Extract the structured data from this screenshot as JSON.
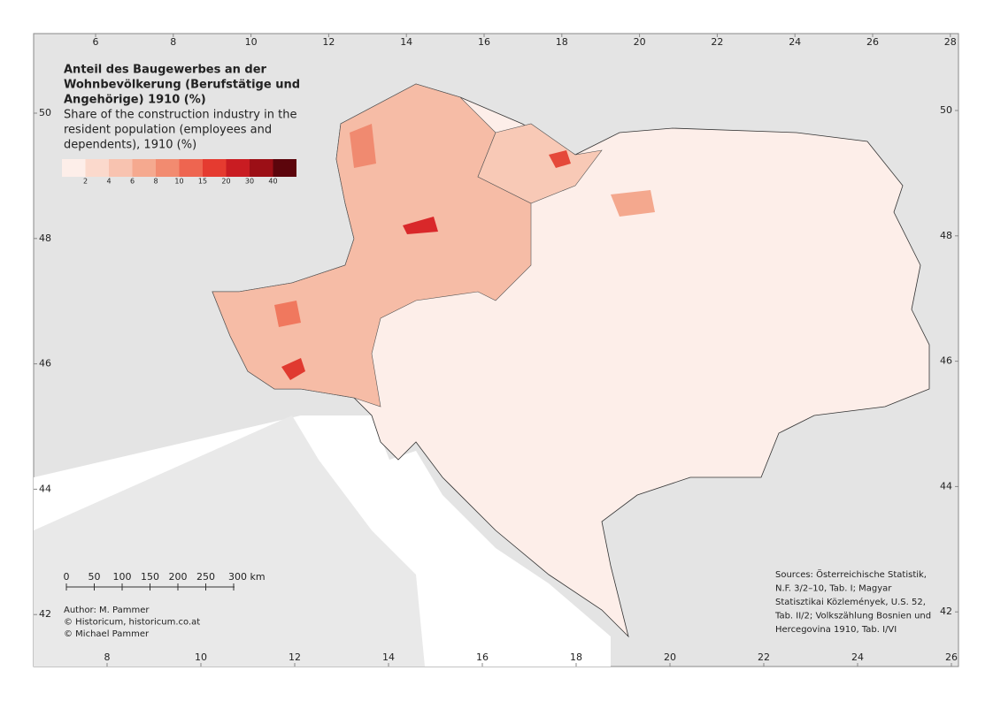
{
  "title": [
    "Anteil des Baugewerbes an der",
    "Wohnbevölkerung (Berufstätige und",
    "Angehörige) 1910 (%)"
  ],
  "subtitle": [
    "Share of the construction industry in the",
    "resident population (employees and",
    "dependents), 1910 (%)"
  ],
  "legend": {
    "colors": [
      "#fdeee9",
      "#fbd9cc",
      "#f8c3b0",
      "#f5a98f",
      "#f28b70",
      "#ee6550",
      "#e53b30",
      "#c91c22",
      "#9c0f16",
      "#5c050c"
    ],
    "breaks": [
      2,
      4,
      6,
      8,
      10,
      15,
      20,
      30,
      40
    ]
  },
  "graticule": {
    "top": [
      6,
      8,
      10,
      12,
      14,
      16,
      18,
      20,
      22,
      24,
      26,
      28
    ],
    "bottom": [
      8,
      10,
      12,
      14,
      16,
      18,
      20,
      22,
      24,
      26
    ],
    "left": [
      50,
      48,
      46,
      44,
      42
    ],
    "right": [
      50,
      48,
      46,
      44,
      42
    ]
  },
  "scale_bar": {
    "labels": [
      "0",
      "50",
      "100",
      "150",
      "200",
      "250",
      "300 km"
    ]
  },
  "author": [
    "Author: M. Pammer",
    "© Historicum, historicum.co.at",
    "© Michael Pammer"
  ],
  "sources": [
    "Sources: Österreichische Statistik,",
    "N.F. 3/2–10, Tab. I; Magyar",
    "Statisztikai Közlemények, U.S. 52,",
    "Tab. II/2; Volkszählung Bosnien und",
    "Hercegovina 1910, Tab. I/VI"
  ]
}
